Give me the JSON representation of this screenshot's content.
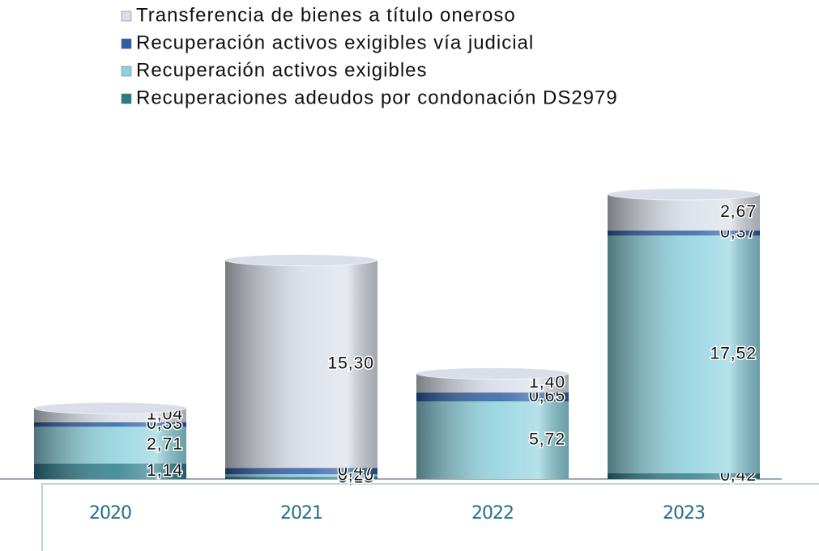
{
  "chart_data": {
    "type": "bar",
    "stacked": true,
    "categories": [
      "2020",
      "2021",
      "2022",
      "2023"
    ],
    "series": [
      {
        "name": "Transferencia de bienes a título oneroso",
        "color": "#d9dee8",
        "values": [
          1.04,
          15.3,
          1.4,
          2.67
        ],
        "value_labels": [
          "1,04",
          "15,30",
          "1,40",
          "2,67"
        ]
      },
      {
        "name": "Recuperación activos exigibles vía judicial",
        "color": "#2d5ea6",
        "values": [
          0.33,
          0.47,
          0.65,
          0.37
        ],
        "value_labels": [
          "0,33",
          "0,47",
          "0,65",
          "0,37"
        ]
      },
      {
        "name": "Recuperación activos exigibles",
        "color": "#8ed2df",
        "values": [
          2.71,
          0.2,
          5.72,
          17.52
        ],
        "value_labels": [
          "2,71",
          "0,20",
          "5,72",
          "17,52"
        ]
      },
      {
        "name": "Recuperaciones adeudos por condonación DS2979",
        "color": "#2b7d8c",
        "values": [
          1.14,
          0.15,
          null,
          0.42
        ],
        "value_labels": [
          "1,14",
          "0,15",
          null,
          "0,42"
        ]
      }
    ]
  }
}
